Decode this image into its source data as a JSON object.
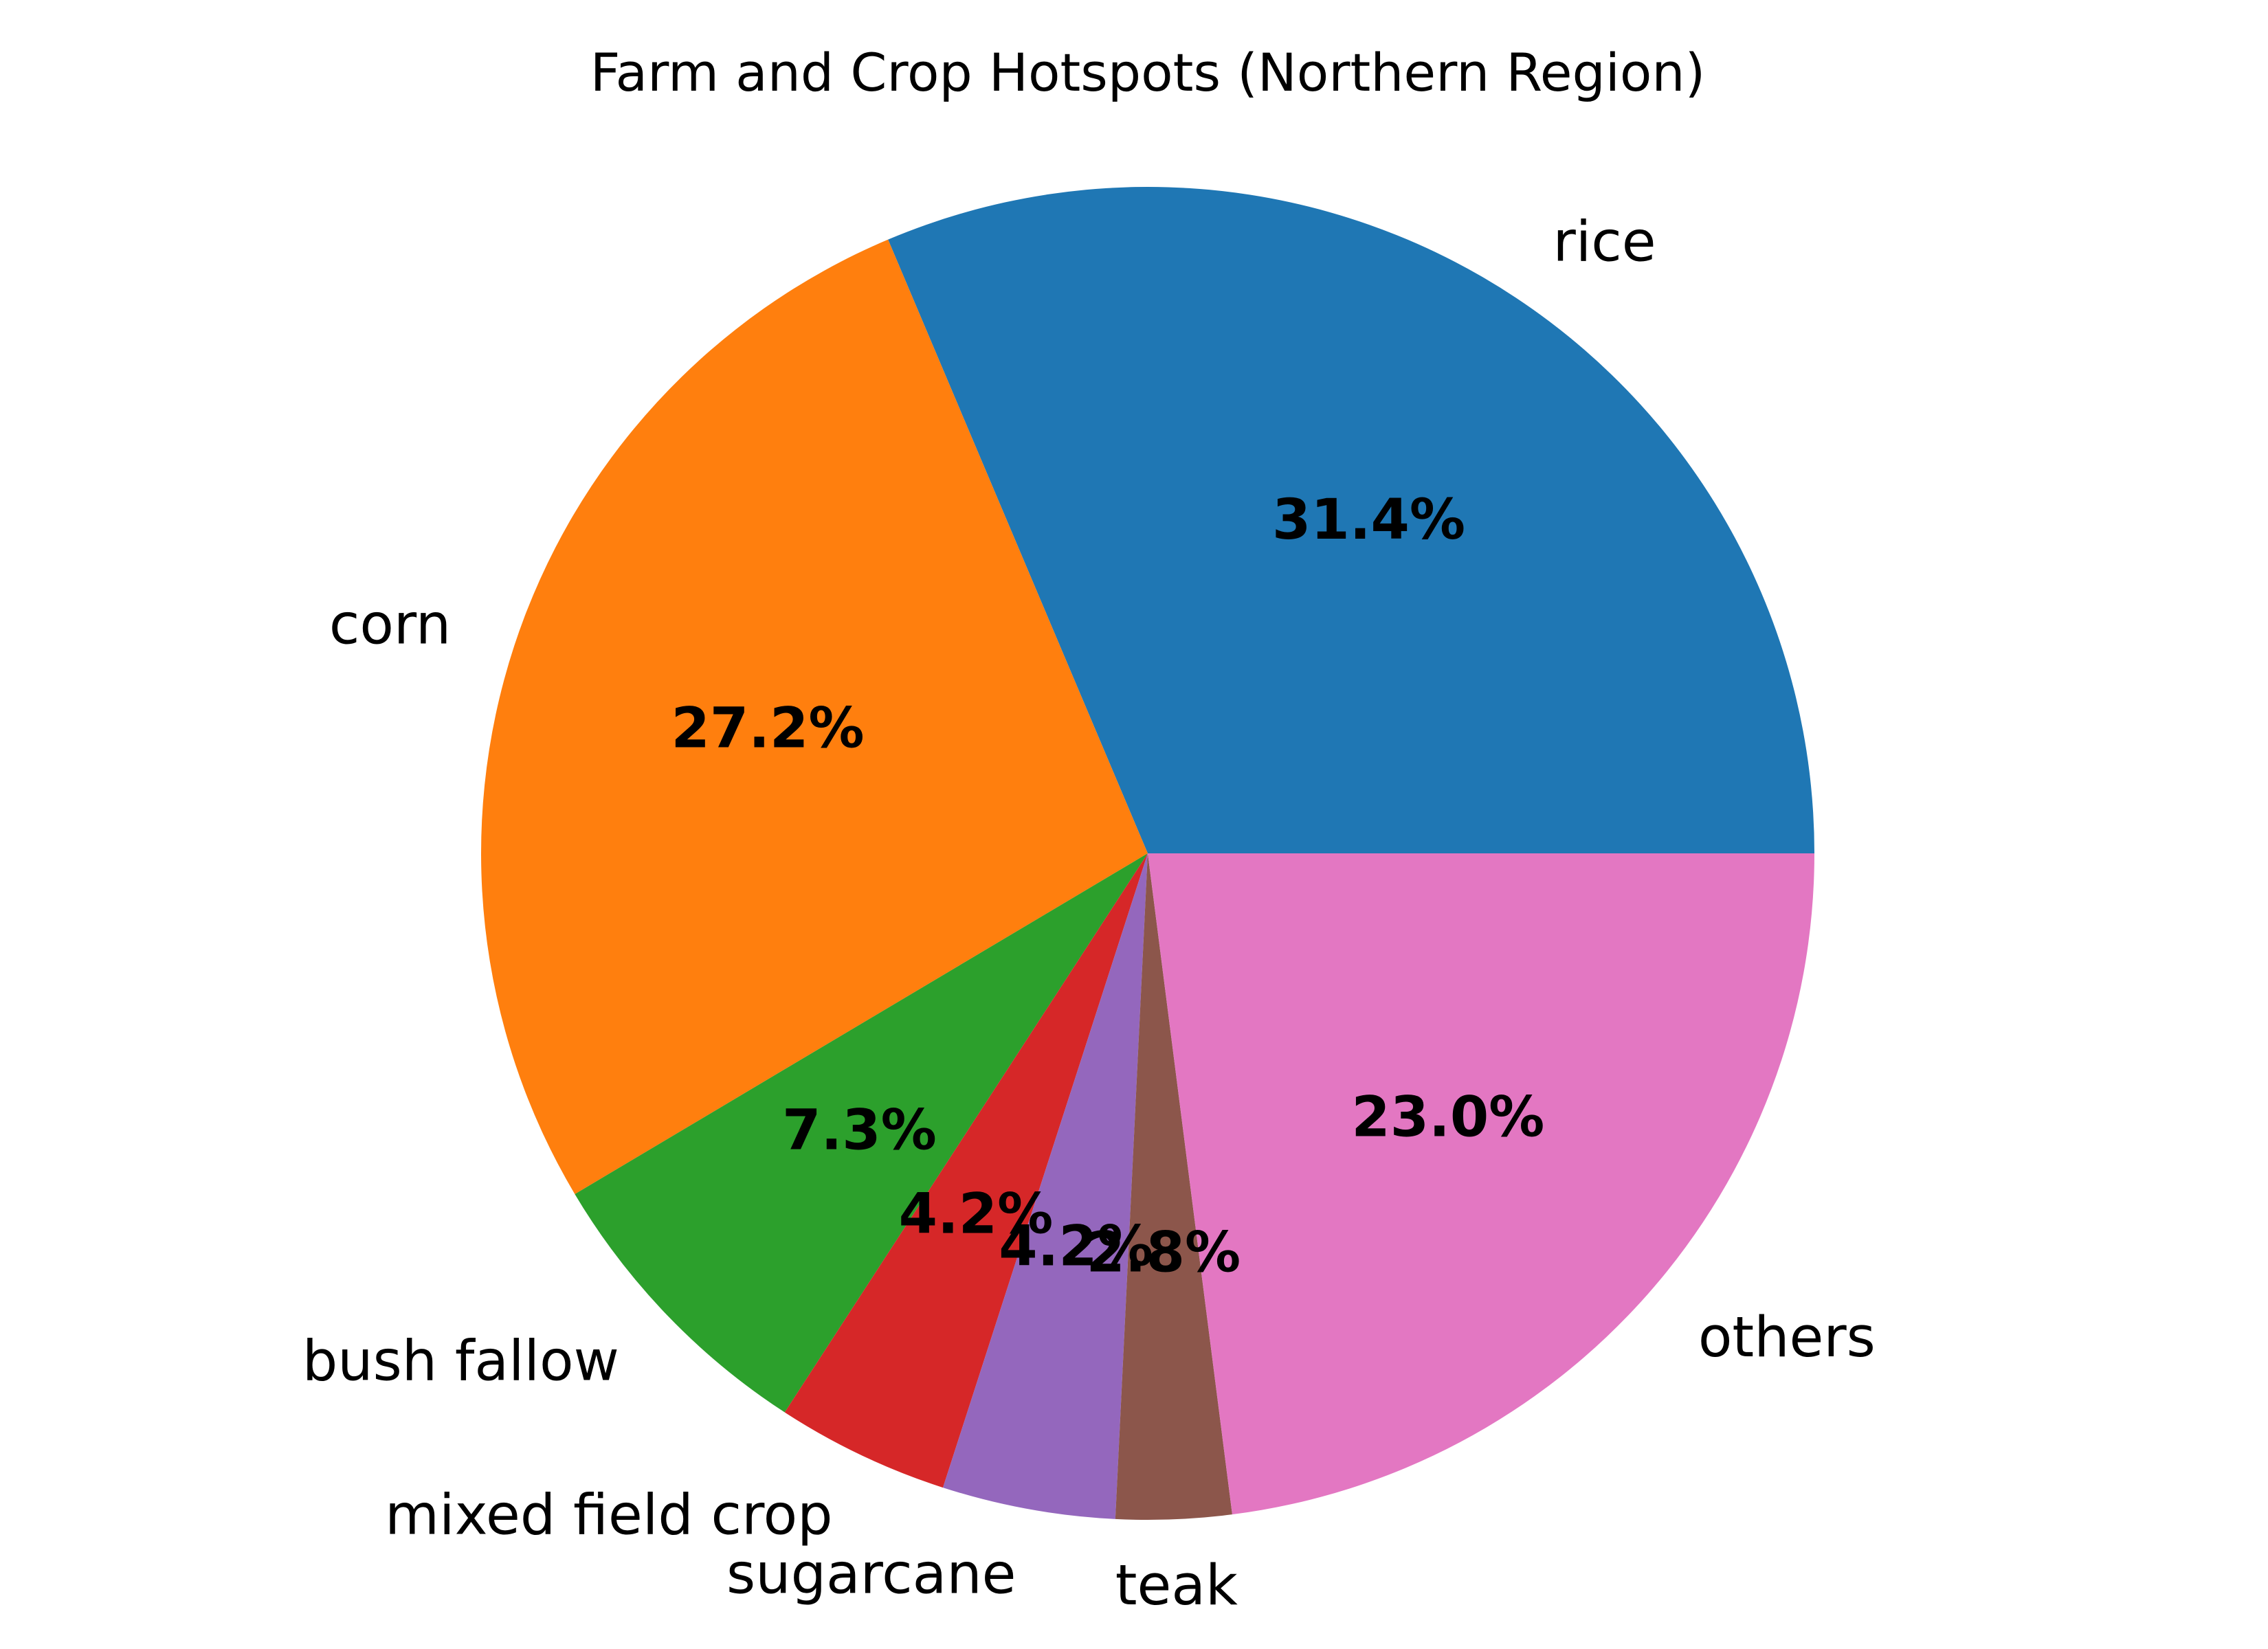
{
  "chart_data": {
    "type": "pie",
    "title": "Farm and Crop Hotspots (Northern Region)",
    "start_angle_deg": 0,
    "direction": "counterclockwise",
    "slices": [
      {
        "label": "rice",
        "value": 31.4,
        "pct_text": "31.4%",
        "color": "#1f77b4"
      },
      {
        "label": "corn",
        "value": 27.2,
        "pct_text": "27.2%",
        "color": "#ff7f0e"
      },
      {
        "label": "bush fallow",
        "value": 7.3,
        "pct_text": "7.3%",
        "color": "#2ca02c"
      },
      {
        "label": "mixed field crop",
        "value": 4.2,
        "pct_text": "4.2%",
        "color": "#d62728"
      },
      {
        "label": "sugarcane",
        "value": 4.2,
        "pct_text": "4.2%",
        "color": "#9467bd"
      },
      {
        "label": "teak",
        "value": 2.8,
        "pct_text": "2.8%",
        "color": "#8c564b"
      },
      {
        "label": "others",
        "value": 23.0,
        "pct_text": "23.0%",
        "color": "#e377c2"
      }
    ]
  }
}
